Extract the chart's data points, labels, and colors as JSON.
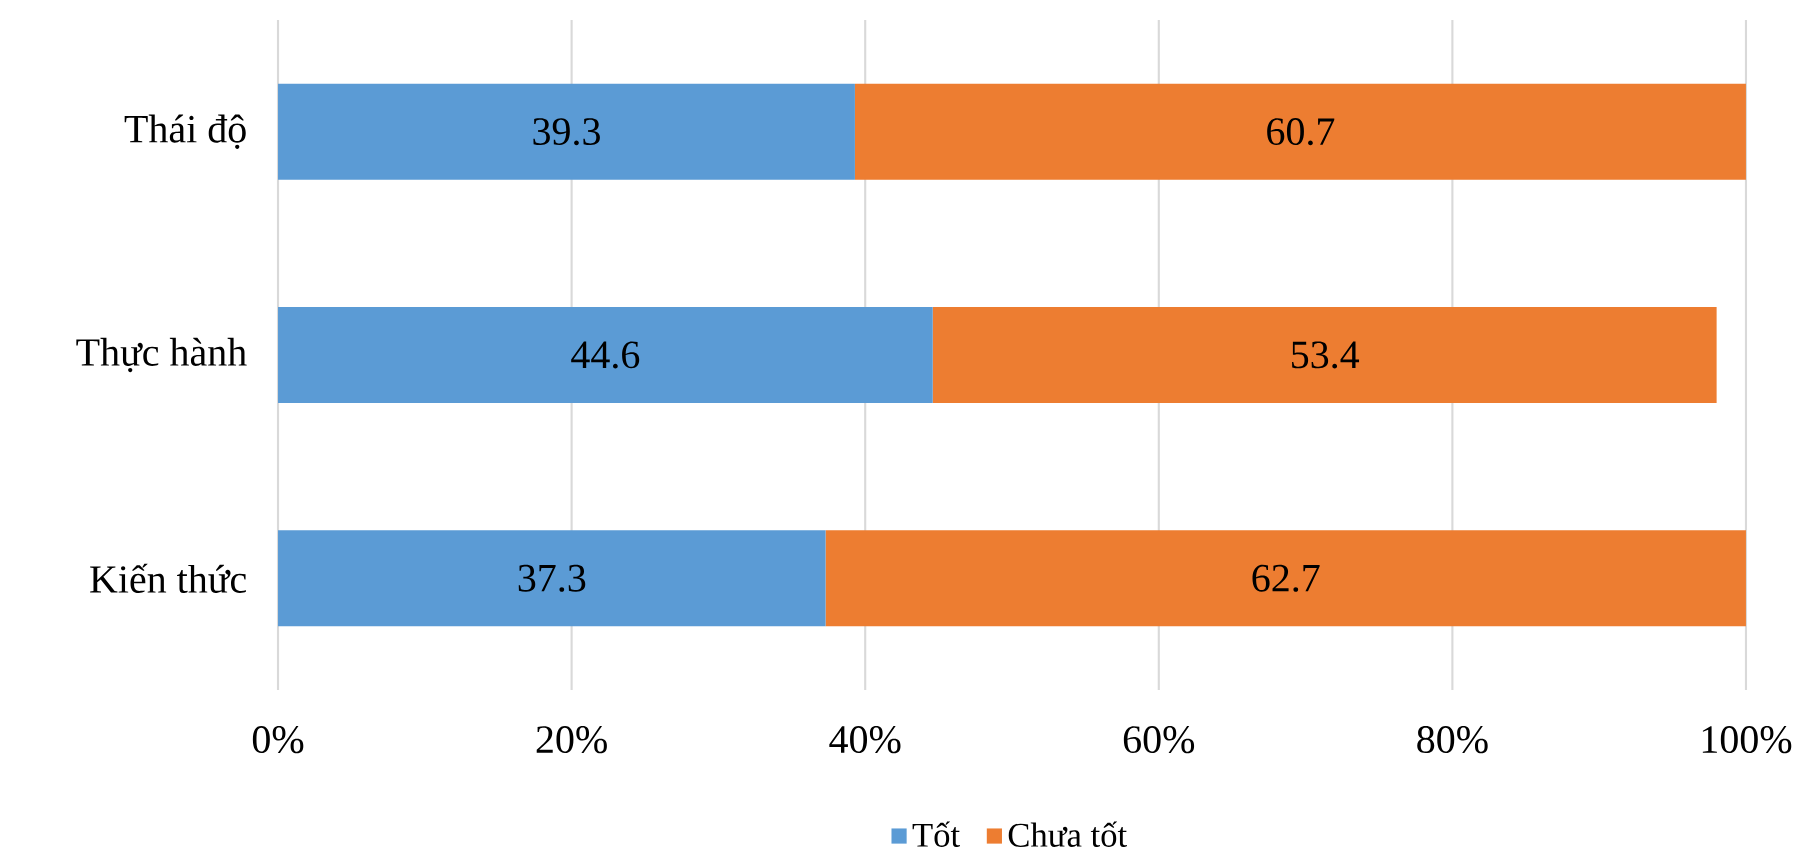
{
  "chart_data": {
    "type": "bar",
    "orientation": "horizontal",
    "stacked": true,
    "categories": [
      "Thái độ",
      "Thực hành",
      "Kiến thức"
    ],
    "series": [
      {
        "name": "Tốt",
        "color": "#5b9bd5",
        "values": [
          39.3,
          44.6,
          37.3
        ]
      },
      {
        "name": "Chưa tốt",
        "color": "#ed7d31",
        "values": [
          60.7,
          53.4,
          62.7
        ]
      }
    ],
    "xlim": [
      0,
      100
    ],
    "xticks": [
      {
        "value": 0,
        "label": "0%"
      },
      {
        "value": 20,
        "label": "20%"
      },
      {
        "value": 40,
        "label": "40%"
      },
      {
        "value": 60,
        "label": "60%"
      },
      {
        "value": 80,
        "label": "80%"
      },
      {
        "value": 100,
        "label": "100%"
      }
    ],
    "grid": "x",
    "legend": "bottom",
    "data_labels": true
  }
}
